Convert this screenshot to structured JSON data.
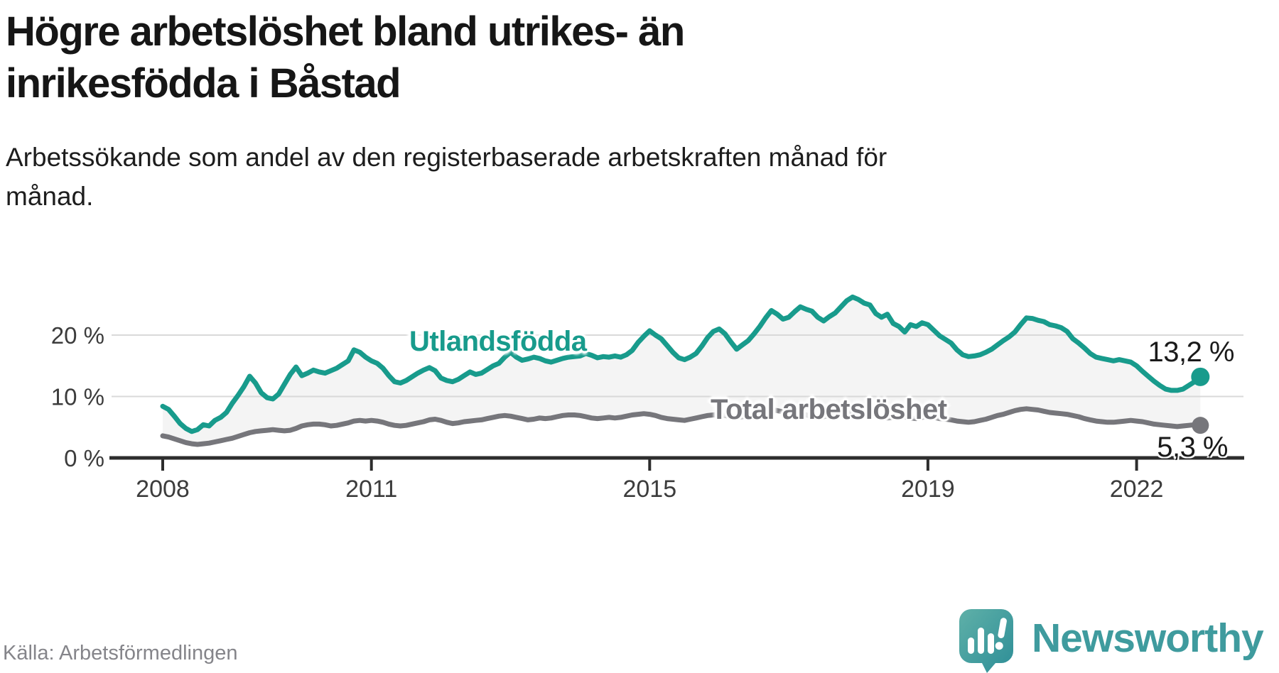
{
  "header": {
    "title": "Högre arbetslöshet bland utrikes- än\ninrikesfödda i Båstad",
    "subtitle": "Arbetssökande som andel av den registerbaserade arbetskraften månad för\nmånad."
  },
  "footer": {
    "source": "Källa: Arbetsförmedlingen",
    "brand": "Newsworthy",
    "logo_icon": "newsworthy-speech-bubble-bar-chart-icon"
  },
  "colors": {
    "series_foreign_born": "#189b8c",
    "series_total": "#76767b",
    "area_fill": "#f4f4f4",
    "gridline": "#d9d9d9",
    "axis": "#2d2d2d",
    "tick_label": "#3c3c3c",
    "value_label": "#1a1a1a",
    "title_text": "#161616",
    "source_text": "#85858a",
    "brand_teal": "#3f9b9e"
  },
  "chart_data": {
    "type": "line",
    "title": "Högre arbetslöshet bland utrikes- än inrikesfödda i Båstad",
    "subtitle": "Arbetssökande som andel av den registerbaserade arbetskraften månad för månad.",
    "unit": "%",
    "x_description": "Monthly values, January 2008 – December 2022",
    "x_start_year": 2008,
    "points_per_year": 12,
    "grid": "horizontal-only",
    "legend_position": "inline-labels-on-chart",
    "ylim": [
      0,
      27
    ],
    "x_ticks": [
      {
        "label": "2008",
        "year": 2008
      },
      {
        "label": "2011",
        "year": 2011
      },
      {
        "label": "2015",
        "year": 2015
      },
      {
        "label": "2019",
        "year": 2019
      },
      {
        "label": "2022",
        "year": 2022
      }
    ],
    "y_ticks": [
      {
        "label": "0 %",
        "value": 0
      },
      {
        "label": "10 %",
        "value": 10
      },
      {
        "label": "20 %",
        "value": 20
      }
    ],
    "area_between_series_fill": "#f4f4f4",
    "series": [
      {
        "name": "Utlandsfödda",
        "color": "#189b8c",
        "end_label": "13,2 %",
        "end_value": 13.2,
        "values": [
          8.4,
          7.9,
          6.8,
          5.6,
          4.8,
          4.3,
          4.6,
          5.4,
          5.2,
          6.1,
          6.6,
          7.4,
          8.9,
          10.2,
          11.6,
          13.3,
          12.2,
          10.6,
          9.8,
          9.6,
          10.4,
          12.0,
          13.6,
          14.8,
          13.4,
          13.8,
          14.3,
          14.0,
          13.8,
          14.2,
          14.6,
          15.2,
          15.8,
          17.6,
          17.2,
          16.4,
          15.8,
          15.4,
          14.6,
          13.4,
          12.4,
          12.2,
          12.6,
          13.2,
          13.8,
          14.3,
          14.7,
          14.2,
          13.0,
          12.6,
          12.4,
          12.8,
          13.4,
          14.0,
          13.6,
          13.8,
          14.4,
          15.0,
          15.4,
          16.4,
          17.2,
          16.4,
          15.9,
          16.1,
          16.4,
          16.2,
          15.8,
          15.6,
          15.9,
          16.2,
          16.4,
          16.5,
          16.6,
          17.0,
          16.7,
          16.3,
          16.5,
          16.4,
          16.6,
          16.4,
          16.8,
          17.5,
          18.8,
          19.8,
          20.7,
          20.0,
          19.4,
          18.3,
          17.2,
          16.3,
          16.0,
          16.4,
          17.0,
          18.2,
          19.6,
          20.6,
          21.0,
          20.2,
          18.9,
          17.7,
          18.4,
          19.1,
          20.2,
          21.4,
          22.8,
          24.0,
          23.4,
          22.6,
          22.9,
          23.8,
          24.6,
          24.2,
          23.9,
          22.9,
          22.3,
          23.0,
          23.6,
          24.6,
          25.6,
          26.2,
          25.8,
          25.2,
          24.9,
          23.5,
          22.9,
          23.4,
          21.9,
          21.4,
          20.5,
          21.7,
          21.4,
          22.0,
          21.7,
          20.8,
          19.9,
          19.3,
          18.7,
          17.6,
          16.8,
          16.5,
          16.6,
          16.8,
          17.2,
          17.7,
          18.4,
          19.1,
          19.7,
          20.5,
          21.7,
          22.8,
          22.7,
          22.4,
          22.2,
          21.7,
          21.5,
          21.2,
          20.6,
          19.4,
          18.7,
          17.9,
          17.0,
          16.4,
          16.2,
          16.0,
          15.8,
          16.0,
          15.8,
          15.6,
          15.0,
          14.1,
          13.3,
          12.5,
          11.8,
          11.2,
          11.0,
          11.0,
          11.2,
          11.8,
          12.4,
          13.2
        ]
      },
      {
        "name": "Total arbetslöshet",
        "color": "#76767b",
        "end_label": "5,3 %",
        "end_value": 5.3,
        "values": [
          3.6,
          3.4,
          3.1,
          2.8,
          2.5,
          2.3,
          2.2,
          2.3,
          2.4,
          2.6,
          2.8,
          3.0,
          3.2,
          3.5,
          3.8,
          4.1,
          4.3,
          4.4,
          4.5,
          4.6,
          4.5,
          4.4,
          4.5,
          4.8,
          5.2,
          5.4,
          5.5,
          5.5,
          5.4,
          5.2,
          5.3,
          5.5,
          5.7,
          6.0,
          6.1,
          6.0,
          6.1,
          6.0,
          5.8,
          5.5,
          5.3,
          5.2,
          5.3,
          5.5,
          5.7,
          5.9,
          6.2,
          6.3,
          6.1,
          5.8,
          5.6,
          5.7,
          5.9,
          6.0,
          6.1,
          6.2,
          6.4,
          6.6,
          6.8,
          6.9,
          6.8,
          6.6,
          6.4,
          6.2,
          6.3,
          6.5,
          6.4,
          6.5,
          6.7,
          6.9,
          7.0,
          7.0,
          6.9,
          6.7,
          6.5,
          6.4,
          6.5,
          6.6,
          6.5,
          6.6,
          6.8,
          7.0,
          7.1,
          7.2,
          7.1,
          6.9,
          6.6,
          6.4,
          6.3,
          6.2,
          6.1,
          6.3,
          6.5,
          6.7,
          6.9,
          7.0,
          7.1,
          6.9,
          6.7,
          6.6,
          6.7,
          6.9,
          7.1,
          7.3,
          7.5,
          7.8,
          7.7,
          7.5,
          7.6,
          7.5,
          7.3,
          7.0,
          6.8,
          6.6,
          6.7,
          6.9,
          7.0,
          7.2,
          7.4,
          7.6,
          7.5,
          7.3,
          7.1,
          6.9,
          6.7,
          6.5,
          6.6,
          6.8,
          6.7,
          6.5,
          6.4,
          6.6,
          6.8,
          6.6,
          6.4,
          6.3,
          6.2,
          6.0,
          5.9,
          5.8,
          5.9,
          6.1,
          6.3,
          6.6,
          6.9,
          7.1,
          7.4,
          7.7,
          7.9,
          8.0,
          7.9,
          7.8,
          7.6,
          7.4,
          7.3,
          7.2,
          7.1,
          6.9,
          6.7,
          6.4,
          6.2,
          6.0,
          5.9,
          5.8,
          5.8,
          5.9,
          6.0,
          6.1,
          6.0,
          5.9,
          5.7,
          5.5,
          5.4,
          5.3,
          5.2,
          5.1,
          5.2,
          5.3,
          5.4,
          5.3
        ]
      }
    ]
  }
}
